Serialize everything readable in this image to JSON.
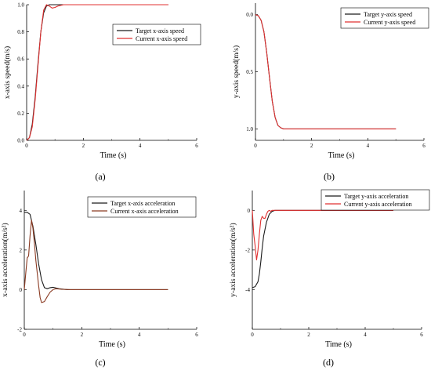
{
  "colors": {
    "target": "#1a1a1a",
    "current_red": "#e03030",
    "current_brown": "#8a3a22"
  },
  "chart_data": [
    {
      "id": "a",
      "type": "line",
      "panel_label": "(a)",
      "xlabel": "Time (s)",
      "ylabel": "x-axis speed(m/s)",
      "xlim": [
        0,
        6
      ],
      "ylim": [
        0,
        1.0
      ],
      "y_reversed": false,
      "xticks": [
        0,
        2,
        4,
        6
      ],
      "xtick_labels": [
        "0",
        "2",
        "4",
        "6"
      ],
      "yticks": [
        0,
        0.2,
        0.4,
        0.6,
        0.8,
        1.0
      ],
      "ytick_labels": [
        "0.0",
        "0.2",
        "0.4",
        "0.6",
        "0.8",
        "1.0"
      ],
      "legend_position": "top-right",
      "series": [
        {
          "name": "Target x-axis speed",
          "color": "#1a1a1a",
          "x": [
            0,
            0.1,
            0.2,
            0.3,
            0.4,
            0.5,
            0.6,
            0.7,
            0.8,
            1.0,
            1.3,
            1.6,
            2.0,
            5.0
          ],
          "y": [
            0,
            0.02,
            0.12,
            0.32,
            0.57,
            0.8,
            0.94,
            0.99,
            1.0,
            1.0,
            1.0,
            1.0,
            1.0,
            1.0
          ]
        },
        {
          "name": "Current x-axis speed",
          "color": "#e03030",
          "x": [
            0,
            0.1,
            0.2,
            0.3,
            0.4,
            0.5,
            0.6,
            0.7,
            0.8,
            0.9,
            1.0,
            1.1,
            1.3,
            1.6,
            2.0,
            5.0
          ],
          "y": [
            0,
            0.02,
            0.1,
            0.3,
            0.55,
            0.8,
            0.96,
            1.0,
            0.99,
            0.975,
            0.98,
            0.99,
            1.0,
            1.0,
            1.0,
            1.0
          ]
        }
      ]
    },
    {
      "id": "b",
      "type": "line",
      "panel_label": "(b)",
      "xlabel": "Time (s)",
      "ylabel": "y-axis speed(m/s)",
      "xlim": [
        0,
        6
      ],
      "ylim": [
        -0.1,
        1.1
      ],
      "y_reversed": true,
      "xticks": [
        0,
        2,
        4,
        6
      ],
      "xtick_labels": [
        "0",
        "2",
        "4",
        "6"
      ],
      "yticks": [
        0,
        0.5,
        1.0
      ],
      "ytick_labels": [
        "0.0",
        "0.5",
        "1.0"
      ],
      "legend_position": "top-right",
      "series": [
        {
          "name": "Target y-axis speed",
          "color": "#1a1a1a",
          "x": [
            0,
            0.1,
            0.2,
            0.3,
            0.4,
            0.5,
            0.6,
            0.7,
            0.8,
            0.9,
            1.0,
            1.2,
            1.5,
            5.0
          ],
          "y": [
            0,
            0.01,
            0.05,
            0.15,
            0.33,
            0.55,
            0.76,
            0.9,
            0.97,
            0.99,
            1.0,
            1.0,
            1.0,
            1.0
          ]
        },
        {
          "name": "Current y-axis speed",
          "color": "#e03030",
          "x": [
            0,
            0.1,
            0.2,
            0.3,
            0.4,
            0.5,
            0.6,
            0.7,
            0.8,
            0.9,
            1.0,
            1.2,
            1.5,
            5.0
          ],
          "y": [
            0,
            0.01,
            0.05,
            0.15,
            0.33,
            0.55,
            0.76,
            0.9,
            0.97,
            0.99,
            1.0,
            1.0,
            1.0,
            1.0
          ]
        }
      ]
    },
    {
      "id": "c",
      "type": "line",
      "panel_label": "(c)",
      "xlabel": "Time (s)",
      "ylabel": "x-axis acceleration(m/s²)",
      "xlim": [
        0,
        6
      ],
      "ylim": [
        -2,
        5
      ],
      "y_reversed": false,
      "xticks": [
        0,
        2,
        4,
        6
      ],
      "xtick_labels": [
        "0",
        "2",
        "4",
        "6"
      ],
      "yticks": [
        -2,
        0,
        2,
        4
      ],
      "ytick_labels": [
        "-2",
        "0",
        "2",
        "4"
      ],
      "legend_position": "top-right",
      "series": [
        {
          "name": "Target x-axis acceleration",
          "color": "#1a1a1a",
          "x": [
            0,
            0.1,
            0.2,
            0.3,
            0.4,
            0.5,
            0.6,
            0.7,
            0.8,
            0.9,
            1.0,
            1.2,
            1.5,
            2.0,
            5.0
          ],
          "y": [
            3.9,
            3.9,
            3.8,
            3.2,
            2.3,
            1.3,
            0.5,
            0.1,
            0.05,
            0.1,
            0.12,
            0.05,
            0.0,
            0.0,
            0.0
          ]
        },
        {
          "name": "Current x-axis acceleration",
          "color": "#8a3a22",
          "x": [
            0,
            0.05,
            0.1,
            0.15,
            0.2,
            0.25,
            0.3,
            0.35,
            0.4,
            0.5,
            0.55,
            0.6,
            0.7,
            0.8,
            0.9,
            1.0,
            1.1,
            1.3,
            1.6,
            2.0,
            5.0
          ],
          "y": [
            0,
            0.8,
            1.6,
            1.7,
            2.7,
            3.5,
            3.1,
            2.4,
            1.5,
            0.2,
            -0.4,
            -0.65,
            -0.6,
            -0.35,
            -0.12,
            0.0,
            0.05,
            0.02,
            0.0,
            0.0,
            0.0
          ]
        }
      ]
    },
    {
      "id": "d",
      "type": "line",
      "panel_label": "(d)",
      "xlabel": "Time (s)",
      "ylabel": "y-axis acceleration(m/s²)",
      "xlim": [
        0,
        6
      ],
      "ylim": [
        -6,
        1
      ],
      "y_reversed": false,
      "xticks": [
        0,
        2,
        4,
        6
      ],
      "xtick_labels": [
        "0",
        "2",
        "4",
        "6"
      ],
      "yticks": [
        -4,
        -2,
        0
      ],
      "ytick_labels": [
        "-4",
        "-2",
        "0"
      ],
      "legend_position": "top-right",
      "series": [
        {
          "name": "Target y-axis acceleration",
          "color": "#1a1a1a",
          "x": [
            0,
            0.1,
            0.2,
            0.25,
            0.3,
            0.35,
            0.4,
            0.5,
            0.6,
            0.7,
            0.8,
            1.0,
            1.3,
            2.0,
            5.0
          ],
          "y": [
            -3.9,
            -3.85,
            -3.6,
            -3.2,
            -2.6,
            -1.9,
            -1.3,
            -0.6,
            -0.2,
            -0.05,
            0.0,
            0.0,
            0.0,
            0.0,
            0.0
          ]
        },
        {
          "name": "Current y-axis acceleration",
          "color": "#e03030",
          "x": [
            0,
            0.05,
            0.1,
            0.15,
            0.2,
            0.25,
            0.3,
            0.35,
            0.4,
            0.45,
            0.5,
            0.55,
            0.6,
            0.65,
            0.7,
            0.8,
            1.0,
            1.3,
            2.0,
            5.0
          ],
          "y": [
            0,
            -1.2,
            -1.8,
            -2.5,
            -2.0,
            -1.2,
            -0.5,
            -0.3,
            -0.4,
            -0.4,
            -0.2,
            -0.05,
            0.0,
            -0.05,
            0.0,
            0.0,
            0.0,
            0.0,
            0.0,
            0.0
          ]
        }
      ]
    }
  ]
}
